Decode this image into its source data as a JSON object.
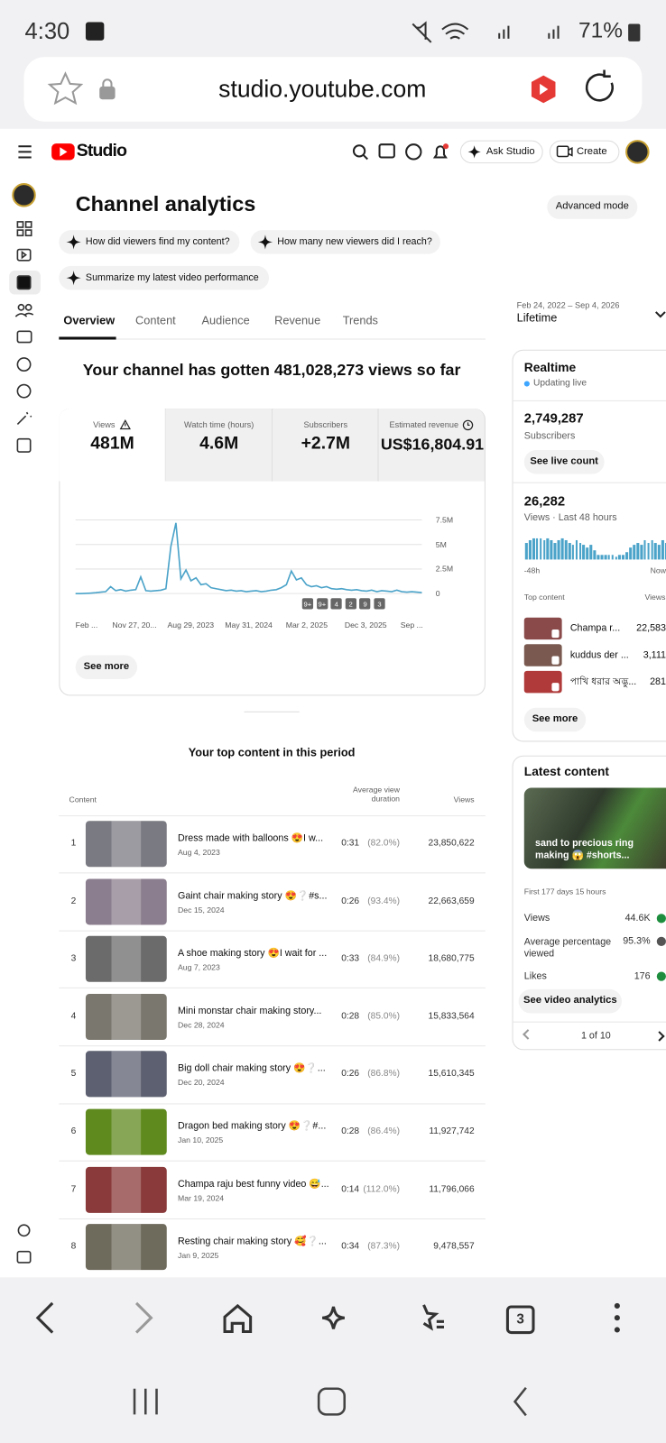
{
  "status_bar": {
    "time": "4:30",
    "battery": "71%"
  },
  "browser": {
    "url": "studio.youtube.com",
    "tab_count": "3"
  },
  "header": {
    "logo": "Studio",
    "ask_button": "Ask Studio",
    "create_button": "Create"
  },
  "analytics": {
    "title": "Channel analytics",
    "advanced_button": "Advanced mode",
    "prompts": [
      "How did viewers find my content?",
      "How many new viewers did I reach?",
      "Summarize my latest video performance"
    ],
    "tabs": [
      "Overview",
      "Content",
      "Audience",
      "Revenue",
      "Trends"
    ],
    "date_range": "Feb 24, 2022 – Sep 4, 2026",
    "period": "Lifetime",
    "summary": "Your channel has gotten 481,028,273 views so far",
    "metrics": [
      {
        "label": "Views",
        "value": "481M"
      },
      {
        "label": "Watch time (hours)",
        "value": "4.6M"
      },
      {
        "label": "Subscribers",
        "value": "+2.7M"
      },
      {
        "label": "Estimated revenue",
        "value": "US$16,804.91"
      }
    ],
    "see_more": "See more"
  },
  "chart_data": {
    "type": "line",
    "color": "#4ba3c9",
    "grid": true,
    "ylim": [
      0,
      7500000
    ],
    "yticks": [
      0,
      {
        "value": 2500000,
        "label": "2.5M"
      },
      {
        "value": 5000000,
        "label": "5M"
      },
      {
        "value": 7500000,
        "label": "7.5M"
      }
    ],
    "x_labels": [
      "Feb ...",
      "Nov 27, 20...",
      "Aug 29, 2023",
      "May 31, 2024",
      "Mar 2, 2025",
      "Dec 3, 2025",
      "Sep ..."
    ],
    "values": [
      0,
      0,
      20000,
      50000,
      80000,
      150000,
      200000,
      700000,
      300000,
      400000,
      250000,
      350000,
      400000,
      1700000,
      300000,
      250000,
      300000,
      350000,
      500000,
      4800000,
      7200000,
      1500000,
      2400000,
      1300000,
      1600000,
      900000,
      1000000,
      600000,
      500000,
      400000,
      300000,
      350000,
      250000,
      300000,
      200000,
      250000,
      300000,
      200000,
      250000,
      350000,
      400000,
      600000,
      900000,
      2300000,
      1400000,
      1600000,
      900000,
      700000,
      800000,
      600000,
      700000,
      500000,
      450000,
      500000,
      400000,
      350000,
      400000,
      300000,
      250000,
      350000,
      200000,
      300000,
      250000,
      200000,
      350000,
      200000,
      150000,
      200000,
      150000,
      100000
    ],
    "badges": [
      "9+",
      "9+",
      "4",
      "2",
      "9",
      "3"
    ]
  },
  "top_content": {
    "title": "Your top content in this period",
    "columns": [
      "Content",
      "Average view duration",
      "Views"
    ],
    "rows": [
      {
        "rank": 1,
        "title": "Dress made with balloons 😍I w...",
        "date": "Aug 4, 2023",
        "duration": "0:31",
        "percent": "(82.0%)",
        "views": "23,850,622"
      },
      {
        "rank": 2,
        "title": "Gaint chair making story 😍❔#s...",
        "date": "Dec 15, 2024",
        "duration": "0:26",
        "percent": "(93.4%)",
        "views": "22,663,659"
      },
      {
        "rank": 3,
        "title": "A shoe making story 😍I wait for ...",
        "date": "Aug 7, 2023",
        "duration": "0:33",
        "percent": "(84.9%)",
        "views": "18,680,775"
      },
      {
        "rank": 4,
        "title": "Mini monstar chair making story...",
        "date": "Dec 28, 2024",
        "duration": "0:28",
        "percent": "(85.0%)",
        "views": "15,833,564"
      },
      {
        "rank": 5,
        "title": "Big doll chair making story 😍❔...",
        "date": "Dec 20, 2024",
        "duration": "0:26",
        "percent": "(86.8%)",
        "views": "15,610,345"
      },
      {
        "rank": 6,
        "title": "Dragon bed making story 😍❔#...",
        "date": "Jan 10, 2025",
        "duration": "0:28",
        "percent": "(86.4%)",
        "views": "11,927,742"
      },
      {
        "rank": 7,
        "title": "Champa raju best funny video 😅...",
        "date": "Mar 19, 2024",
        "duration": "0:14",
        "percent": "(112.0%)",
        "views": "11,796,066"
      },
      {
        "rank": 8,
        "title": "Resting chair making story 🥰❔...",
        "date": "Jan 9, 2025",
        "duration": "0:34",
        "percent": "(87.3%)",
        "views": "9,478,557"
      }
    ]
  },
  "realtime": {
    "title": "Realtime",
    "status": "Updating live",
    "subscribers": "2,749,287",
    "subscribers_label": "Subscribers",
    "live_button": "See live count",
    "views": "26,282",
    "views_label": "Views · Last 48 hours",
    "bars": [
      7,
      8,
      9,
      9,
      9,
      8,
      9,
      8,
      7,
      8,
      9,
      8,
      7,
      6,
      8,
      7,
      6,
      5,
      6,
      4,
      2,
      2,
      2,
      2,
      2,
      1,
      2,
      2,
      3,
      5,
      6,
      7,
      6,
      8,
      7,
      8,
      7,
      6,
      8,
      7,
      8,
      6,
      9,
      5,
      4,
      3,
      7,
      2
    ],
    "start_label": "-48h",
    "end_label": "Now",
    "top_title": "Top content",
    "top_views_label": "Views",
    "top": [
      {
        "title": "Champa r...",
        "views": "22,583"
      },
      {
        "title": "kuddus der ...",
        "views": "3,111"
      },
      {
        "title": "পাখি ধরার অদ্ভু...",
        "views": "281"
      }
    ],
    "see_more": "See more"
  },
  "latest": {
    "title": "Latest content",
    "video_title": "sand to precious ring making 😱 #shorts...",
    "period": "First 177 days 15 hours",
    "stats": [
      {
        "label": "Views",
        "value": "44.6K"
      },
      {
        "label": "Average percentage viewed",
        "value": "95.3%"
      },
      {
        "label": "Likes",
        "value": "176"
      }
    ],
    "button": "See video analytics",
    "pager": "1 of 10"
  }
}
